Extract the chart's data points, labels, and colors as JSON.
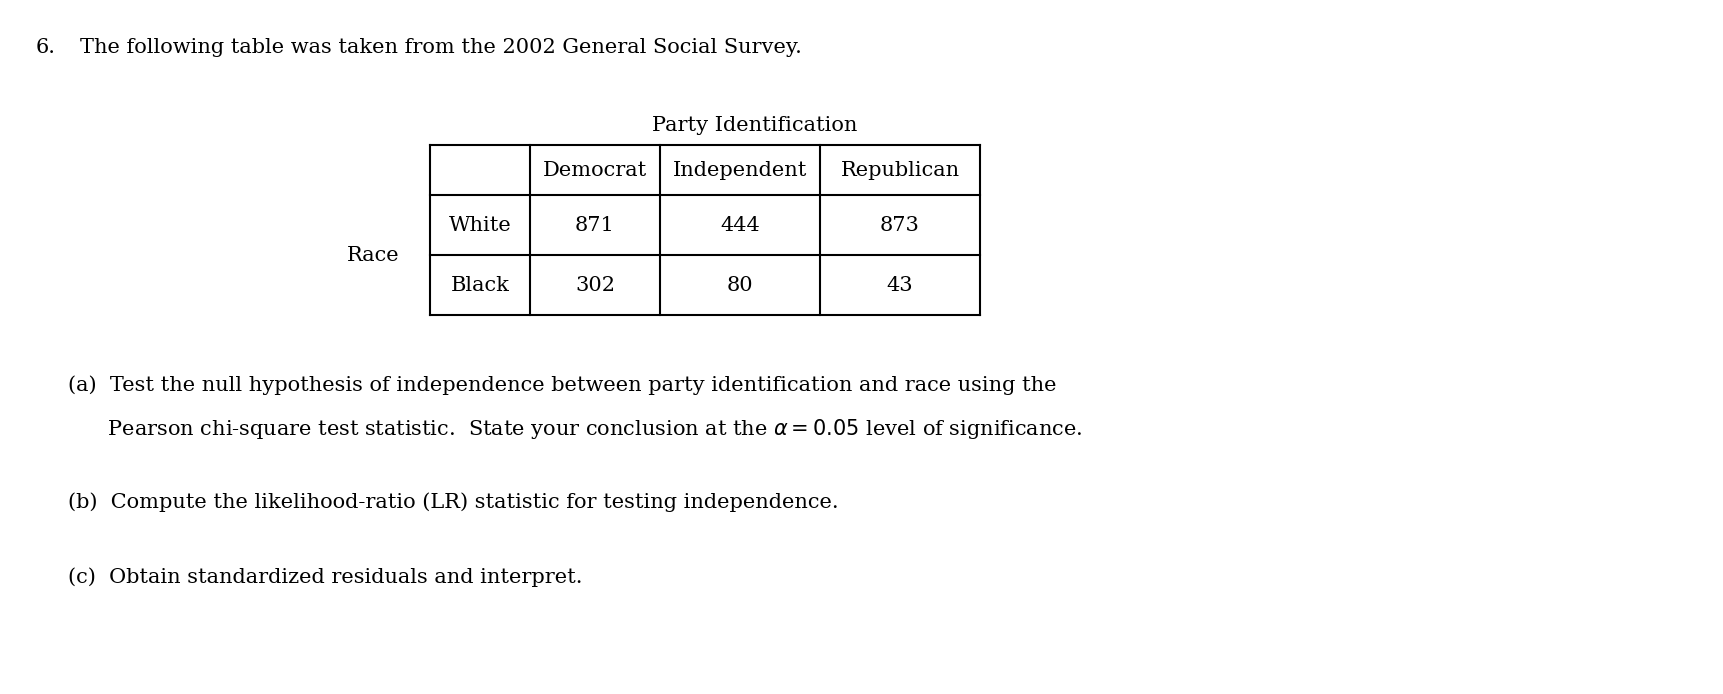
{
  "title_number": "6.",
  "title_text": "The following table was taken from the 2002 General Social Survey.",
  "table_title": "Party Identification",
  "row_label": "Race",
  "col_headers": [
    "Democrat",
    "Independent",
    "Republican"
  ],
  "row_headers": [
    "White",
    "Black"
  ],
  "data": [
    [
      871,
      444,
      873
    ],
    [
      302,
      80,
      43
    ]
  ],
  "line1_a": "(a)  Test the null hypothesis of independence between party identification and race using the",
  "line2_a": "      Pearson chi-square test statistic.  State your conclusion at the $\\alpha = 0.05$ level of significance.",
  "part_b": "(b)  Compute the likelihood-ratio (LR) statistic for testing independence.",
  "part_c": "(c)  Obtain standardized residuals and interpret.",
  "font_family": "DejaVu Serif",
  "font_size": 15,
  "bg_color": "#ffffff",
  "text_color": "#000000"
}
